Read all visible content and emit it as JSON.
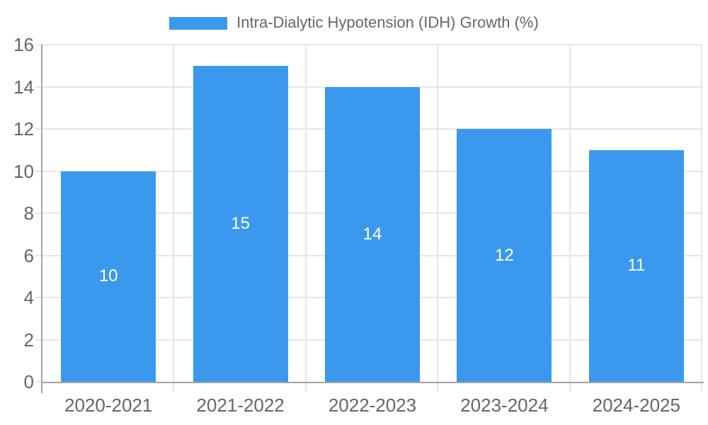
{
  "chart_data": {
    "type": "bar",
    "legend_label": "Intra-Dialytic Hypotension (IDH) Growth (%)",
    "legend_position": "top",
    "categories": [
      "2020-2021",
      "2021-2022",
      "2022-2023",
      "2023-2024",
      "2024-2025"
    ],
    "values": [
      10,
      15,
      14,
      12,
      11
    ],
    "value_labels": [
      "10",
      "15",
      "14",
      "12",
      "11"
    ],
    "y_ticks": [
      0,
      2,
      4,
      6,
      8,
      10,
      12,
      14,
      16
    ],
    "ylim": [
      0,
      16
    ],
    "grid": true,
    "colors": {
      "bar": "#3a99ec",
      "value_label": "#ffffff",
      "grid": "#e6e6e6",
      "axis": "#a3a3a3",
      "tick_label": "#666666",
      "legend_text": "#666666",
      "background": "#ffffff"
    }
  }
}
